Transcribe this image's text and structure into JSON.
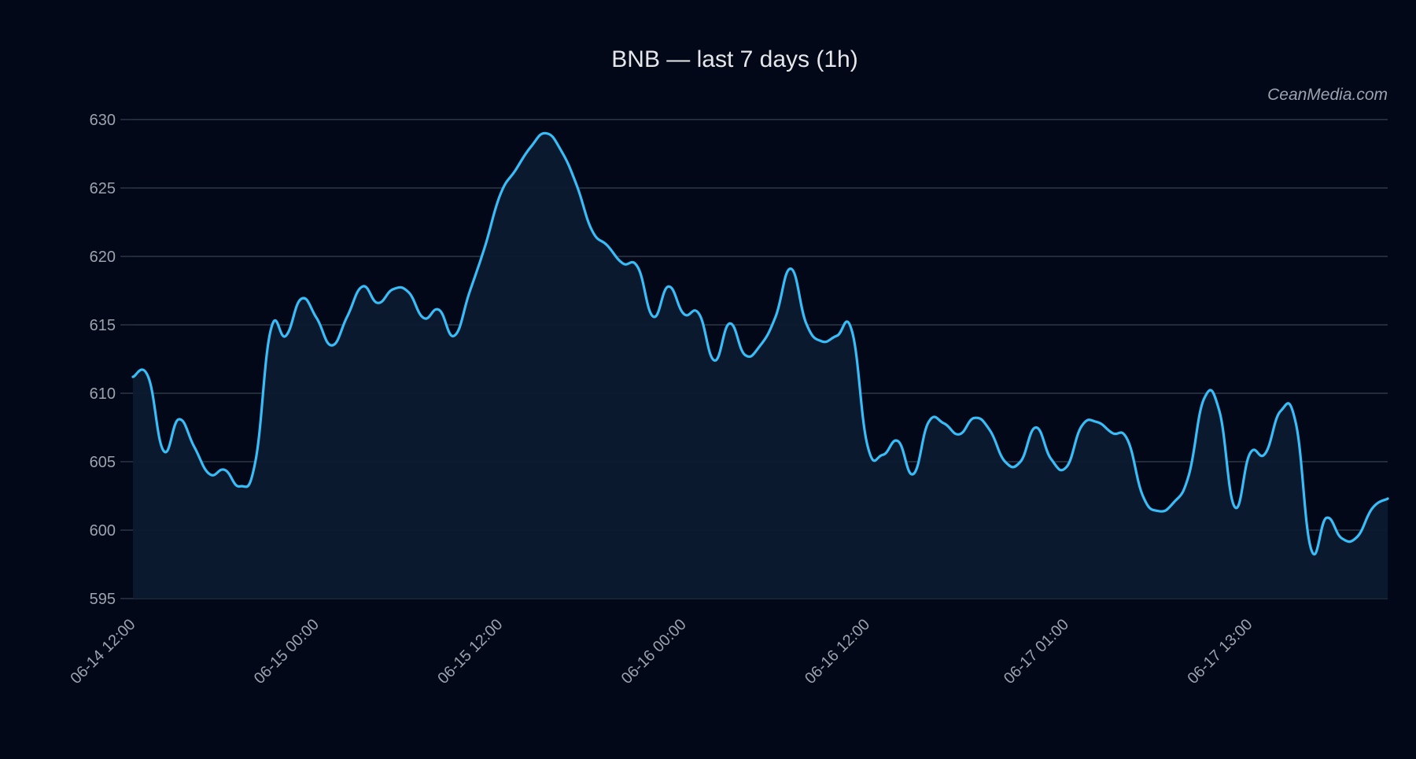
{
  "title": "BNB — last 7 days (1h)",
  "watermark": "CeanMedia.com",
  "colors": {
    "background": "#020817",
    "line": "#38bdf8",
    "area": "#0b1a2e",
    "grid": "#374151",
    "text": "#9ca3af",
    "title": "#e5e7eb"
  },
  "chart_data": {
    "type": "area",
    "title": "BNB — last 7 days (1h)",
    "xlabel": "",
    "ylabel": "",
    "ylim": [
      595,
      630
    ],
    "yticks": [
      595,
      600,
      605,
      610,
      615,
      620,
      625,
      630
    ],
    "xlim": [
      "06-14 12:00",
      "06-17 22:00"
    ],
    "xticks": [
      "06-14 12:00",
      "06-15 00:00",
      "06-15 12:00",
      "06-16 00:00",
      "06-16 12:00",
      "06-17 01:00",
      "06-17 13:00"
    ],
    "grid": "horizontal",
    "legend": "none",
    "series": [
      {
        "x": [
          "06-14 12:00",
          "06-14 13:00",
          "06-14 14:00",
          "06-14 15:00",
          "06-14 16:00",
          "06-14 17:00",
          "06-14 18:00",
          "06-14 19:00",
          "06-14 20:00",
          "06-14 21:00",
          "06-14 22:00",
          "06-14 23:00",
          "06-15 00:00",
          "06-15 01:00",
          "06-15 02:00",
          "06-15 03:00",
          "06-15 04:00",
          "06-15 05:00",
          "06-15 06:00",
          "06-15 07:00",
          "06-15 08:00",
          "06-15 09:00",
          "06-15 10:00",
          "06-15 11:00",
          "06-15 12:00",
          "06-15 13:00",
          "06-15 14:00",
          "06-15 15:00",
          "06-15 16:00",
          "06-15 17:00",
          "06-15 18:00",
          "06-15 19:00",
          "06-15 20:00",
          "06-15 21:00",
          "06-15 22:00",
          "06-15 23:00",
          "06-16 00:00",
          "06-16 01:00",
          "06-16 02:00",
          "06-16 03:00",
          "06-16 04:00",
          "06-16 05:00",
          "06-16 06:00",
          "06-16 07:00",
          "06-16 08:00",
          "06-16 09:00",
          "06-16 10:00",
          "06-16 11:00",
          "06-16 12:00",
          "06-16 13:00",
          "06-16 14:00",
          "06-16 15:00",
          "06-16 16:00",
          "06-16 17:00",
          "06-16 18:00",
          "06-16 19:00",
          "06-16 20:00",
          "06-16 21:00",
          "06-16 22:00",
          "06-16 23:00",
          "06-17 00:00",
          "06-17 01:00",
          "06-17 02:00",
          "06-17 03:00",
          "06-17 04:00",
          "06-17 05:00",
          "06-17 06:00",
          "06-17 07:00",
          "06-17 08:00",
          "06-17 09:00",
          "06-17 10:00",
          "06-17 11:00",
          "06-17 12:00",
          "06-17 13:00",
          "06-17 14:00",
          "06-17 15:00",
          "06-17 16:00",
          "06-17 17:00",
          "06-17 18:00",
          "06-17 19:00",
          "06-17 20:00",
          "06-17 21:00",
          "06-17 22:00"
        ],
        "values": [
          611.2,
          611.2,
          605.8,
          608.1,
          606.1,
          604.1,
          604.4,
          603.2,
          605.0,
          614.6,
          614.2,
          616.9,
          615.5,
          613.5,
          615.6,
          617.8,
          616.6,
          617.6,
          617.4,
          615.5,
          616.1,
          614.2,
          617.4,
          620.7,
          624.5,
          626.3,
          628.0,
          629.0,
          627.7,
          625.2,
          621.9,
          620.8,
          619.5,
          619.2,
          615.6,
          617.8,
          615.8,
          615.8,
          612.4,
          615.1,
          612.8,
          613.5,
          615.6,
          619.1,
          615.1,
          613.8,
          614.2,
          614.5,
          606.2,
          605.5,
          606.5,
          604.1,
          607.9,
          607.8,
          607.0,
          608.2,
          607.3,
          605.0,
          605.0,
          607.5,
          605.2,
          604.6,
          607.6,
          607.9,
          607.1,
          606.6,
          602.5,
          601.4,
          602.0,
          604.0,
          609.6,
          608.7,
          601.7,
          605.6,
          605.6,
          608.7,
          607.8,
          598.6,
          600.9,
          599.4,
          599.5,
          601.6,
          602.3
        ]
      }
    ]
  }
}
